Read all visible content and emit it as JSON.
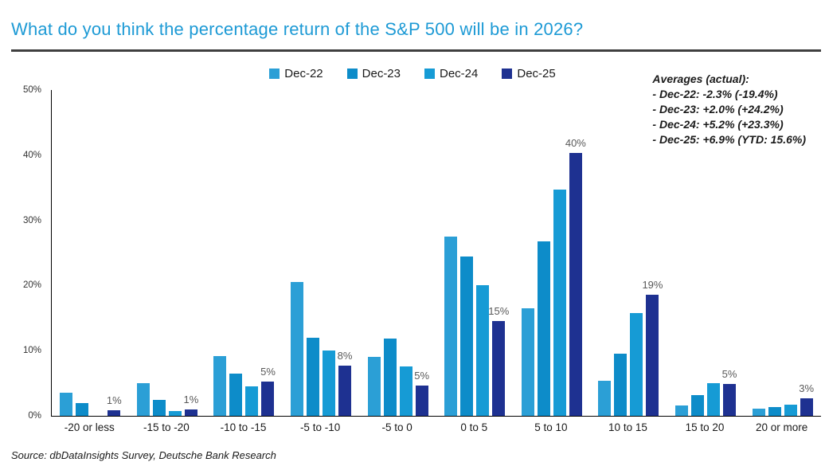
{
  "title": "What do you think the percentage return of the S&P 500 will be in 2026?",
  "source": "Source: dbDataInsights Survey, Deutsche Bank Research",
  "annotation": {
    "heading": "Averages (actual):",
    "lines": [
      "- Dec-22: -2.3% (-19.4%)",
      "- Dec-23: +2.0% (+24.2%)",
      "- Dec-24: +5.2% (+23.3%)",
      "- Dec-25: +6.9% (YTD: 15.6%)"
    ]
  },
  "colors": {
    "title_blue": "#1d9ad5",
    "rule_gray": "#3f3f3f",
    "data_label_gray": "#595959",
    "axis_black": "#000000"
  },
  "chart_data": {
    "type": "bar",
    "categories": [
      "-20 or less",
      "-15 to -20",
      "-10 to -15",
      "-5 to -10",
      "-5 to 0",
      "0 to 5",
      "5 to 10",
      "10 to 15",
      "15 to 20",
      "20 or more"
    ],
    "series": [
      {
        "name": "Dec-22",
        "color": "#2b9fd6",
        "values": [
          3.5,
          5.0,
          9.2,
          20.5,
          9.0,
          27.5,
          16.5,
          5.4,
          1.6,
          1.1
        ]
      },
      {
        "name": "Dec-23",
        "color": "#0d8cc9",
        "values": [
          2.0,
          2.4,
          6.5,
          12.0,
          11.8,
          24.4,
          26.8,
          9.5,
          3.2,
          1.3
        ]
      },
      {
        "name": "Dec-24",
        "color": "#169bd5",
        "values": [
          0,
          0.7,
          4.5,
          10.0,
          7.6,
          20.0,
          34.7,
          15.8,
          5.0,
          1.7
        ]
      },
      {
        "name": "Dec-25",
        "color": "#1e3191",
        "values": [
          0.8,
          1.0,
          5.3,
          7.7,
          4.6,
          14.5,
          40.3,
          18.6,
          4.9,
          2.7
        ],
        "labels": [
          "1%",
          "1%",
          "5%",
          "8%",
          "5%",
          "15%",
          "40%",
          "19%",
          "5%",
          "3%"
        ]
      }
    ],
    "ylim": [
      0,
      50
    ],
    "y_ticks": [
      "0%",
      "10%",
      "20%",
      "30%",
      "40%",
      "50%"
    ],
    "y_tick_values": [
      0,
      10,
      20,
      30,
      40,
      50
    ],
    "grid": false,
    "legend_position": "top-center",
    "xlabel": "",
    "ylabel": ""
  }
}
